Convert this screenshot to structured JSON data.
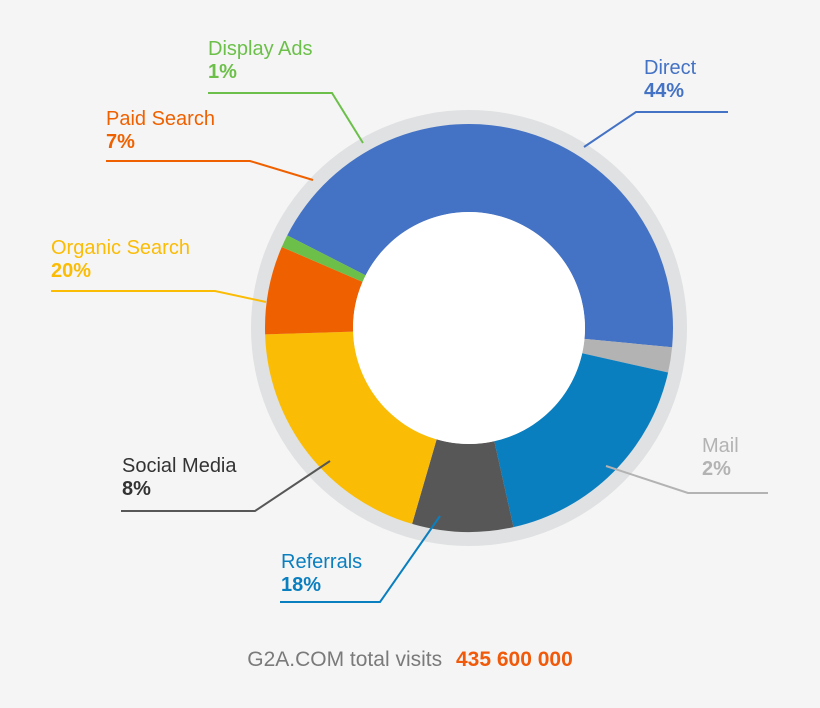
{
  "chart_data": {
    "type": "pie",
    "categories": [
      "Direct",
      "Mail",
      "Referrals",
      "Social Media",
      "Organic Search",
      "Paid Search",
      "Display Ads"
    ],
    "values": [
      44,
      2,
      18,
      8,
      20,
      7,
      1
    ],
    "value_labels": [
      "44%",
      "2%",
      "18%",
      "8%",
      "20%",
      "7%",
      "1%"
    ],
    "colors": [
      "#4472c4",
      "#b3b3b3",
      "#0a7fc0",
      "#575757",
      "#fbbc05",
      "#ef6100",
      "#6cc04a"
    ],
    "donut": true,
    "legend": "callout labels around the chart"
  },
  "footer": {
    "label": "G2A.COM total visits",
    "total": "435 600 000"
  }
}
